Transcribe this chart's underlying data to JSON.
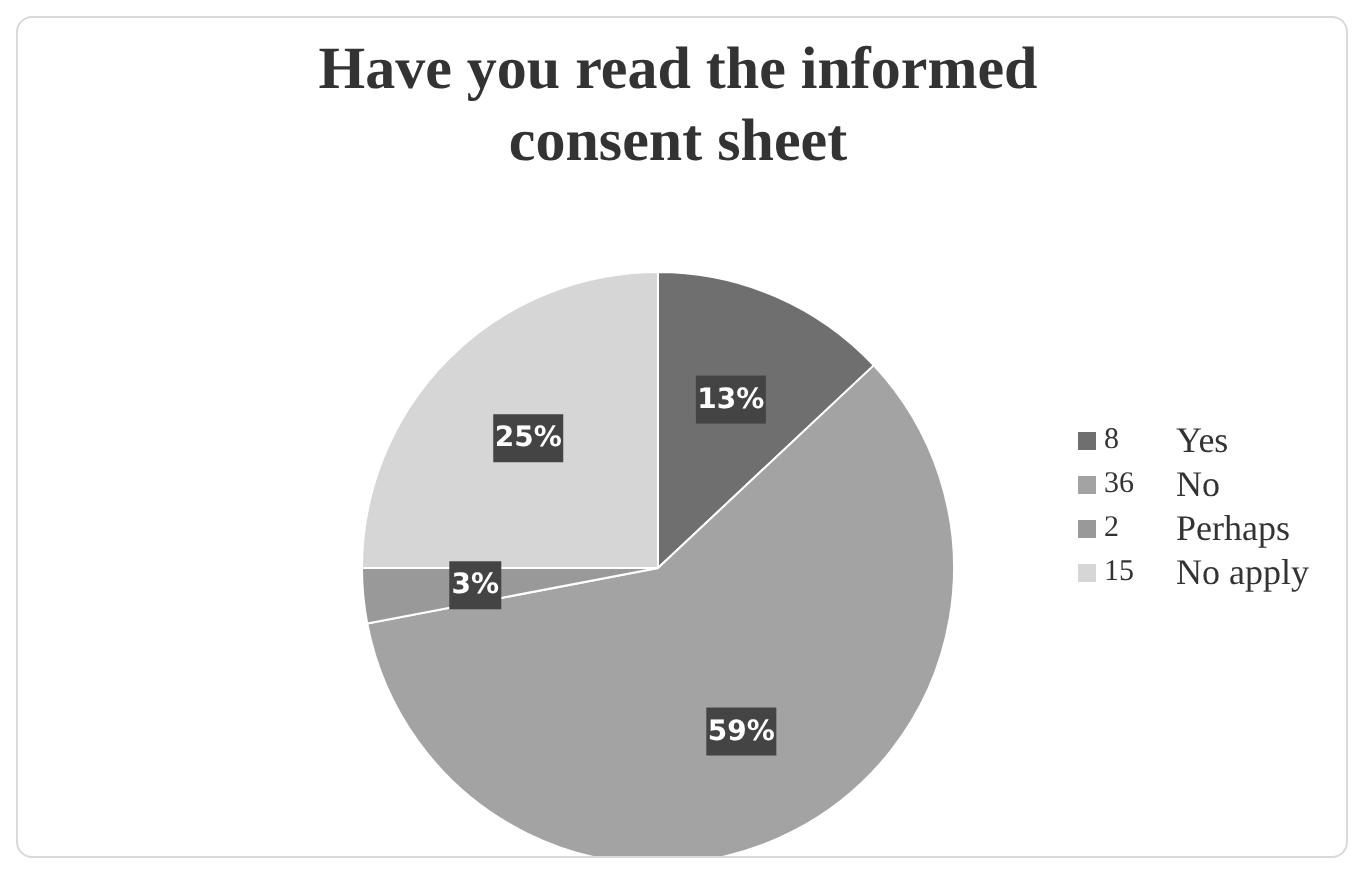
{
  "chart_data": {
    "type": "pie",
    "title": "Have you read the informed consent sheet",
    "categories": [
      "8",
      "36",
      "2",
      "15"
    ],
    "values": [
      13,
      59,
      3,
      25
    ],
    "value_labels": [
      "13%",
      "59%",
      "3%",
      "25%"
    ],
    "colors": [
      "#6f6f6f",
      "#a3a3a3",
      "#999999",
      "#d6d6d6"
    ],
    "annotations": [
      "Yes",
      "No",
      "Perhaps",
      "No apply"
    ],
    "legend": "right"
  }
}
